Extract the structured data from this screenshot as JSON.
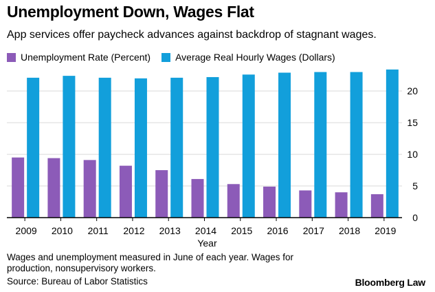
{
  "header": {
    "title": "Unemployment Down, Wages Flat",
    "subtitle": "App services offer paycheck advances against backdrop of stagnant wages."
  },
  "colors": {
    "unemployment": "#8c5bb8",
    "wages": "#129fdb",
    "grid": "#d9d9d9",
    "axis": "#000000"
  },
  "chart_data": {
    "type": "bar",
    "categories": [
      "2009",
      "2010",
      "2011",
      "2012",
      "2013",
      "2014",
      "2015",
      "2016",
      "2017",
      "2018",
      "2019"
    ],
    "series": [
      {
        "name": "Unemployment Rate (Percent)",
        "values": [
          9.5,
          9.4,
          9.1,
          8.2,
          7.5,
          6.1,
          5.3,
          4.9,
          4.3,
          4.0,
          3.7
        ]
      },
      {
        "name": "Average Real Hourly Wages (Dollars)",
        "values": [
          22.1,
          22.4,
          22.1,
          22.0,
          22.1,
          22.2,
          22.6,
          22.9,
          23.0,
          23.0,
          23.4
        ]
      }
    ],
    "xlabel": "Year",
    "ylabel": "",
    "ylim": [
      0,
      23.5
    ],
    "yticks": [
      0,
      5,
      10,
      15,
      20
    ],
    "ytick_labels": [
      "0",
      "5",
      "10",
      "15",
      "20"
    ],
    "grid": true,
    "y_axis_side": "right",
    "legend_position": "top-left"
  },
  "footer": {
    "note": "Wages and unemployment measured in June of each year. Wages for production, nonsupervisory workers.",
    "source": "Source: Bureau of Labor Statistics",
    "logo": "Bloomberg Law"
  }
}
